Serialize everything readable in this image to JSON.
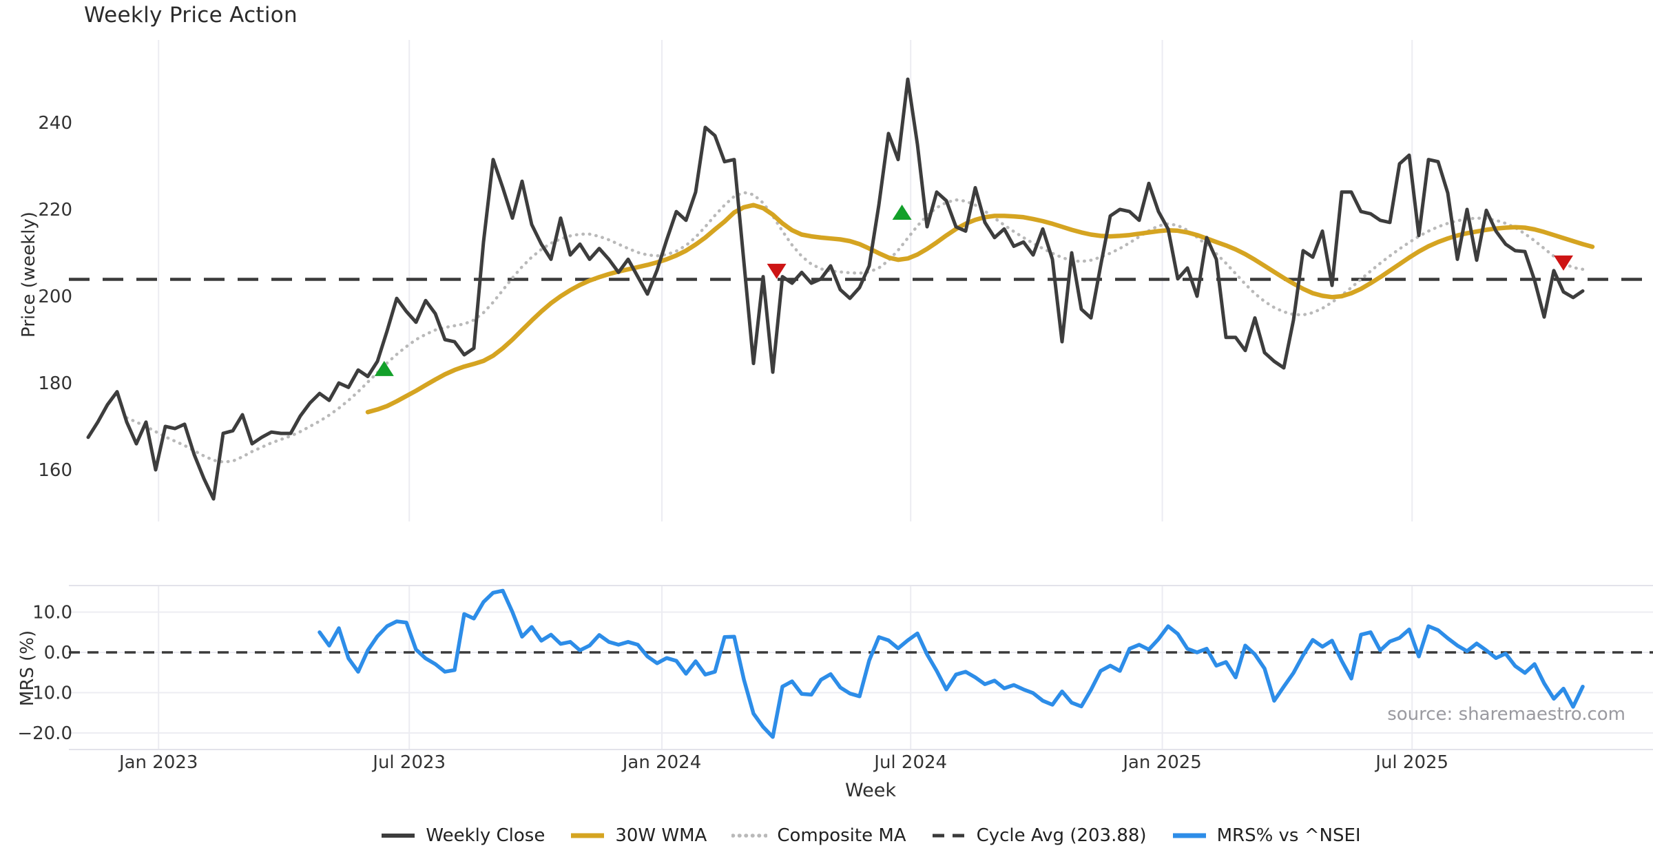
{
  "page": {
    "title": "Weekly Price Action",
    "source_note": "source: sharemaestro.com"
  },
  "colors": {
    "weekly_close": "#3d3d3d",
    "wma_30w": "#d5a421",
    "composite_ma": "#b9b9b9",
    "cycle_avg": "#3a3a3a",
    "mrs_line": "#2d8de8",
    "buy_marker": "#13a02a",
    "sell_marker": "#cd1414",
    "grid": "#ececf2",
    "panel_border": "#e3e3ea",
    "tick_text": "#333333"
  },
  "x_axis": {
    "label": "Week",
    "ticks": [
      {
        "label": "Jan 2023",
        "week": 7.3
      },
      {
        "label": "Jul 2023",
        "week": 33.3
      },
      {
        "label": "Jan 2024",
        "week": 59.5
      },
      {
        "label": "Jul 2024",
        "week": 85.3
      },
      {
        "label": "Jan 2025",
        "week": 111.4
      },
      {
        "label": "Jul 2025",
        "week": 137.3
      }
    ]
  },
  "legend": [
    {
      "label": "Weekly Close",
      "color": "#3d3d3d",
      "style": "solid",
      "width": 5
    },
    {
      "label": "30W WMA",
      "color": "#d5a421",
      "style": "solid",
      "width": 6
    },
    {
      "label": "Composite MA",
      "color": "#b9b9b9",
      "style": "dotted",
      "width": 4.5
    },
    {
      "label": "Cycle Avg (203.88)",
      "color": "#3a3a3a",
      "style": "dashed",
      "width": 4
    },
    {
      "label": "MRS% vs ^NSEI",
      "color": "#2d8de8",
      "style": "solid",
      "width": 6
    }
  ],
  "chart_data": [
    {
      "type": "line",
      "panel": "price",
      "title": "Weekly Price Action",
      "ylabel": "Price (weekly)",
      "ylim": [
        148,
        259
      ],
      "yticks": [
        160,
        180,
        200,
        220,
        240
      ],
      "ytick_labels": [
        "160",
        "180",
        "200",
        "220",
        "240"
      ],
      "grid": "vertical-only",
      "cycle_avg_value": 203.88,
      "series": [
        {
          "name": "Weekly Close",
          "style": "solid",
          "start_week": 0,
          "values": [
            167.5,
            171,
            175,
            178,
            171,
            166,
            171,
            160,
            170,
            169.5,
            170.5,
            163.5,
            158,
            153.3,
            168.4,
            169,
            172.7,
            166,
            167.5,
            168.7,
            168.4,
            168.4,
            172.4,
            175.4,
            177.6,
            176,
            180,
            179,
            183,
            181.5,
            185,
            192,
            199.5,
            196.5,
            194,
            199,
            196,
            190,
            189.5,
            186.5,
            188,
            212.5,
            231.5,
            225,
            218,
            226.5,
            216.5,
            212,
            208.5,
            218,
            209.5,
            212,
            208.5,
            211,
            208.5,
            205.5,
            208.5,
            204.5,
            200.5,
            206,
            213,
            219.5,
            217.5,
            224,
            238.9,
            237,
            231,
            231.5,
            208,
            184.5,
            204.5,
            182.5,
            204.5,
            203,
            205.5,
            203,
            204,
            207,
            201.5,
            199.5,
            202,
            207,
            221,
            237.5,
            231.5,
            250,
            235,
            216,
            224,
            222,
            216,
            215,
            225,
            217,
            213.5,
            215.5,
            211.5,
            212.5,
            209.5,
            215.5,
            208.5,
            189.5,
            210,
            197,
            195,
            207,
            218.5,
            220,
            219.5,
            217.5,
            226,
            219.5,
            215.5,
            204,
            206.5,
            200,
            213.5,
            208.5,
            190.5,
            190.5,
            187.5,
            195,
            187,
            185,
            183.5,
            194.5,
            210.5,
            209,
            215,
            202.5,
            224,
            224,
            219.5,
            219,
            217.5,
            217,
            230.5,
            232.5,
            214,
            231.5,
            231,
            223.8,
            208.5,
            220,
            208.3,
            219.8,
            215,
            212,
            210.5,
            210.3,
            203.7,
            195.2,
            205.9,
            201,
            199.7,
            201.2
          ]
        },
        {
          "name": "30W WMA",
          "style": "solid",
          "start_week": 29,
          "values": [
            173.3,
            173.9,
            174.7,
            175.8,
            177,
            178.2,
            179.5,
            180.8,
            182,
            183,
            183.8,
            184.4,
            185.1,
            186.3,
            188,
            190,
            192.2,
            194.4,
            196.5,
            198.4,
            200,
            201.4,
            202.6,
            203.6,
            204.4,
            205.1,
            205.7,
            206.2,
            206.7,
            207.2,
            207.8,
            208.5,
            209.4,
            210.5,
            211.9,
            213.5,
            215.4,
            217.2,
            219.3,
            220.5,
            221,
            220.3,
            218.8,
            216.8,
            215.2,
            214.2,
            213.8,
            213.5,
            213.3,
            213.1,
            212.7,
            212,
            211,
            209.9,
            208.9,
            208.4,
            208.7,
            209.6,
            210.9,
            212.4,
            214,
            215.5,
            216.7,
            217.6,
            218.2,
            218.5,
            218.5,
            218.4,
            218.2,
            217.8,
            217.3,
            216.7,
            216,
            215.3,
            214.7,
            214.2,
            213.9,
            213.8,
            213.9,
            214.1,
            214.4,
            214.7,
            215,
            215.2,
            215.1,
            214.7,
            214.1,
            213.3,
            212.5,
            211.7,
            210.8,
            209.7,
            208.4,
            207,
            205.6,
            204.2,
            202.9,
            201.7,
            200.7,
            200.1,
            199.8,
            200,
            200.7,
            201.7,
            203,
            204.4,
            205.9,
            207.4,
            208.9,
            210.3,
            211.5,
            212.5,
            213.3,
            214,
            214.5,
            214.9,
            215.3,
            215.6,
            215.8,
            215.9,
            215.8,
            215.4,
            214.8,
            214.1,
            213.4,
            212.7,
            212,
            211.4
          ]
        },
        {
          "name": "Composite MA",
          "style": "dotted",
          "start_week": 4,
          "values": [
            172,
            171,
            170,
            168.8,
            167.6,
            166.6,
            165.6,
            164.4,
            163.2,
            162.2,
            161.8,
            162,
            163,
            164.2,
            165.2,
            166.2,
            167,
            167.8,
            168.8,
            170,
            171.2,
            172.6,
            174.2,
            176,
            178,
            180.2,
            182.4,
            184.6,
            186.6,
            188.4,
            190,
            191.2,
            192.2,
            192.8,
            193.2,
            193.6,
            194.5,
            196.2,
            198.6,
            201.4,
            204.2,
            206.8,
            209,
            210.8,
            212.2,
            213.2,
            213.9,
            214.3,
            214.3,
            213.8,
            213,
            212,
            211,
            210.1,
            209.5,
            209.3,
            209.6,
            210.4,
            211.7,
            213.6,
            216,
            218.6,
            221,
            223,
            223.9,
            223.4,
            221.5,
            218.5,
            215,
            211.8,
            209.2,
            207.4,
            206.3,
            205.8,
            205.6,
            205.4,
            205.3,
            205.6,
            206.5,
            208.2,
            210.6,
            213.4,
            216.2,
            218.6,
            220.4,
            221.6,
            222.2,
            221.9,
            221,
            219.6,
            218,
            216.4,
            214.9,
            213.5,
            212.2,
            211,
            209.9,
            208.9,
            208.2,
            208,
            208.3,
            209,
            209.9,
            211,
            212.3,
            213.7,
            215.1,
            216.2,
            216.7,
            216.3,
            215.2,
            213.6,
            211.8,
            209.8,
            207.6,
            205.2,
            202.8,
            200.6,
            198.8,
            197.4,
            196.4,
            195.8,
            195.7,
            196.2,
            197.2,
            198.6,
            200.2,
            202,
            203.9,
            205.8,
            207.6,
            209.3,
            210.9,
            212.4,
            213.8,
            215,
            216,
            216.8,
            217.4,
            217.8,
            218,
            217.9,
            217.5,
            216.8,
            215.8,
            214.4,
            212.8,
            211,
            209.2,
            207.6,
            206.6,
            206.2
          ]
        },
        {
          "name": "Cycle Avg (203.88)",
          "style": "dashed",
          "constant": 203.88
        }
      ],
      "markers": {
        "buy": [
          {
            "week": 30.7,
            "price": 183.2
          },
          {
            "week": 84.4,
            "price": 219.2
          }
        ],
        "sell": [
          {
            "week": 71.4,
            "price": 205.9
          },
          {
            "week": 153.0,
            "price": 207.8
          }
        ]
      }
    },
    {
      "type": "line",
      "panel": "mrs",
      "ylabel": "MRS (%)",
      "xlabel": "Week",
      "ylim": [
        -24,
        17
      ],
      "yticks": [
        10,
        0,
        -10,
        -20
      ],
      "ytick_labels": [
        "10.0",
        "0.0",
        "−10.0",
        "−20.0"
      ],
      "grid": "both",
      "zero_line": 0,
      "series": [
        {
          "name": "MRS% vs ^NSEI",
          "style": "solid",
          "start_week": 24,
          "values": [
            5,
            1.7,
            6,
            -1.5,
            -4.8,
            0.5,
            4,
            6.5,
            7.7,
            7.4,
            0.7,
            -1.5,
            -2.9,
            -4.8,
            -4.4,
            9.5,
            8.4,
            12.5,
            14.8,
            15.3,
            10,
            3.9,
            6.3,
            2.9,
            4.4,
            2.1,
            2.6,
            0.5,
            1.7,
            4.3,
            2.6,
            1.9,
            2.6,
            1.9,
            -1,
            -2.7,
            -1.4,
            -2.1,
            -5.3,
            -2.2,
            -5.5,
            -4.8,
            3.8,
            3.9,
            -6.7,
            -15.2,
            -18.5,
            -21,
            -8.5,
            -7.2,
            -10.3,
            -10.5,
            -6.8,
            -5.4,
            -8.7,
            -10.2,
            -10.9,
            -2,
            3.8,
            3,
            1,
            3,
            4.7,
            -0.5,
            -4.6,
            -9.2,
            -5.5,
            -4.8,
            -6.2,
            -7.9,
            -7,
            -8.9,
            -8.1,
            -9.2,
            -10.1,
            -12,
            -13,
            -9.7,
            -12.5,
            -13.4,
            -9.3,
            -4.6,
            -3.3,
            -4.6,
            0.9,
            1.9,
            0.7,
            3.3,
            6.5,
            4.6,
            0.9,
            0,
            0.9,
            -3.3,
            -2.4,
            -6.2,
            1.7,
            -0.5,
            -4,
            -12,
            -8.5,
            -5.1,
            -0.7,
            3.1,
            1.4,
            2.9,
            -2.1,
            -6.5,
            4.4,
            5,
            0.5,
            2.7,
            3.6,
            5.7,
            -1,
            6.5,
            5.5,
            3.5,
            1.7,
            0.3,
            2.2,
            0.5,
            -1.4,
            -0.3,
            -3.4,
            -5.1,
            -2.9,
            -7.7,
            -11.5,
            -9,
            -13.5,
            -8.5
          ]
        }
      ]
    }
  ]
}
